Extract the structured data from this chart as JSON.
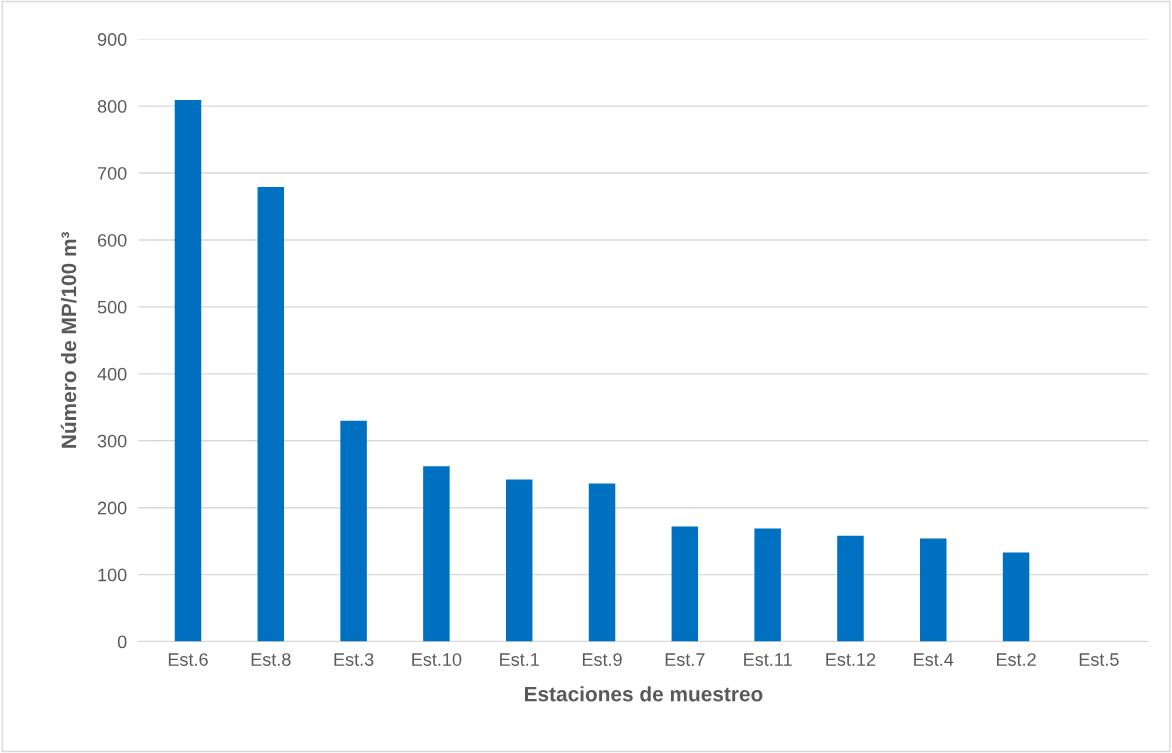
{
  "chart_data": {
    "type": "bar",
    "xlabel": "Estaciones de muestreo",
    "ylabel": "Número de MP/100 m³",
    "categories": [
      "Est.6",
      "Est.8",
      "Est.3",
      "Est.10",
      "Est.1",
      "Est.9",
      "Est.7",
      "Est.11",
      "Est.12",
      "Est.4",
      "Est.2",
      "Est.5"
    ],
    "values": [
      809,
      679,
      330,
      262,
      242,
      236,
      172,
      169,
      158,
      154,
      133,
      0
    ],
    "color": "#0070c0",
    "ylim": [
      0,
      900
    ],
    "yticks": [
      0,
      100,
      200,
      300,
      400,
      500,
      600,
      700,
      800,
      900
    ],
    "grid": "y",
    "legend": false
  }
}
